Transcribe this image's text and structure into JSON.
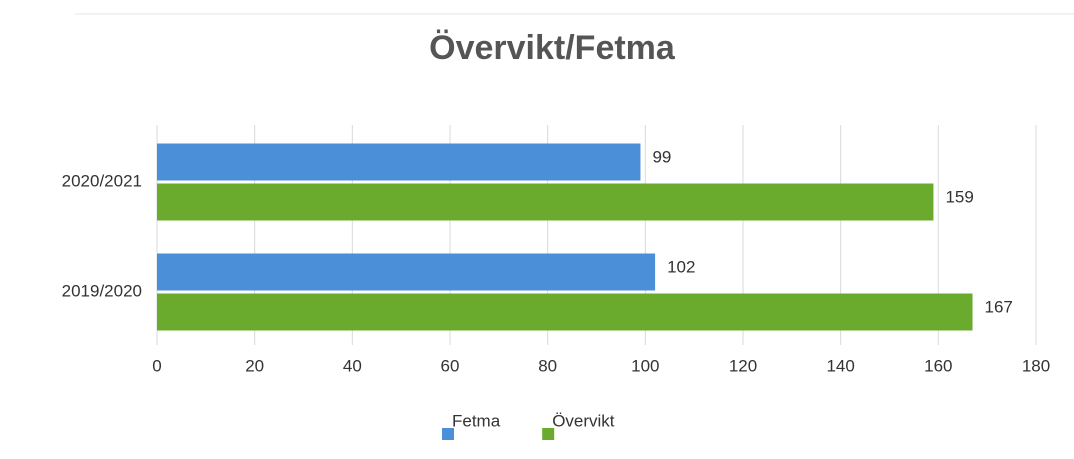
{
  "chart_data": {
    "type": "hbar",
    "title": "Övervikt/Fetma",
    "categories": [
      "2020/2021",
      "2019/2020"
    ],
    "series": [
      {
        "name": "Fetma",
        "color": "#4a8fd8",
        "values": [
          99,
          102
        ]
      },
      {
        "name": "Övervikt",
        "color": "#6aab2e",
        "values": [
          159,
          167
        ]
      }
    ],
    "xlim": [
      0,
      180
    ],
    "xticks": [
      0,
      20,
      40,
      60,
      80,
      100,
      120,
      140,
      160,
      180
    ],
    "grid": true,
    "legend": "bottom"
  }
}
